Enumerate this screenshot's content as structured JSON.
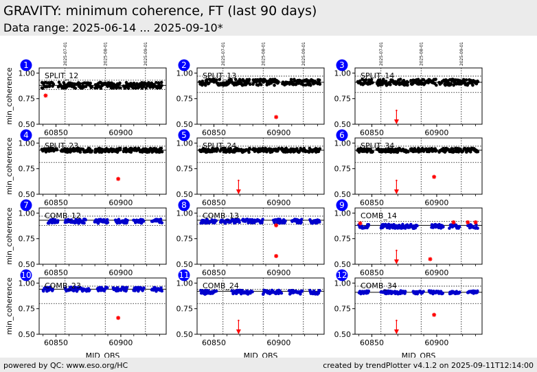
{
  "header": {
    "title": "GRAVITY: minimum coherence, FT (last 90 days)",
    "subtitle": "Data range: 2025-06-14 ... 2025-09-10*"
  },
  "footer": {
    "left": "powered by QC: www.eso.org/HC",
    "right": "created by trendPlotter v4.1.2 on 2025-09-11T12:14:00"
  },
  "colors": {
    "split": "#000000",
    "comb": "#0000cc",
    "outlier": "#ff0000",
    "badge": "#0000ff"
  },
  "chart_data": {
    "type": "scatter",
    "xlabel": "MJD_OBS",
    "ylabel": "min_coherence",
    "xlim": [
      60837,
      60935
    ],
    "ylim": [
      0.5,
      1.05
    ],
    "xticks": [
      60850,
      60900
    ],
    "yticks": [
      "0.50",
      "0.75",
      "1.00"
    ],
    "date_ticks": [
      {
        "mjd": 60857,
        "label": "2025-07-01"
      },
      {
        "mjd": 60888,
        "label": "2025-08-01"
      },
      {
        "mjd": 60919,
        "label": "2025-09-01"
      }
    ],
    "panels": [
      {
        "num": "1",
        "label": "SPLIT_12",
        "group": "split",
        "mean": 0.88,
        "lower": 0.84,
        "upper": 0.93,
        "segments": [
          [
            60839,
            60848
          ],
          [
            60852,
            60878
          ],
          [
            60880,
            60900
          ],
          [
            60902,
            60932
          ]
        ],
        "base": 0.88,
        "spread": 0.03,
        "outliers": [
          [
            60842,
            0.78
          ]
        ],
        "arrows": []
      },
      {
        "num": "2",
        "label": "SPLIT_13",
        "group": "split",
        "mean": 0.91,
        "lower": 0.81,
        "upper": 0.97,
        "segments": [
          [
            60839,
            60878
          ],
          [
            60880,
            60900
          ],
          [
            60903,
            60932
          ]
        ],
        "base": 0.91,
        "spread": 0.03,
        "outliers": [
          [
            60898,
            0.57
          ]
        ],
        "arrows": []
      },
      {
        "num": "3",
        "label": "SPLIT_14",
        "group": "split",
        "mean": 0.91,
        "lower": 0.81,
        "upper": 0.97,
        "segments": [
          [
            60839,
            60851
          ],
          [
            60854,
            60878
          ],
          [
            60880,
            60900
          ],
          [
            60902,
            60932
          ]
        ],
        "base": 0.91,
        "spread": 0.03,
        "outliers": [],
        "arrows": [
          60869
        ]
      },
      {
        "num": "4",
        "label": "SPLIT_23",
        "group": "split",
        "mean": 0.93,
        "lower": 0.81,
        "upper": 0.97,
        "segments": [
          [
            60839,
            60851
          ],
          [
            60854,
            60878
          ],
          [
            60880,
            60900
          ],
          [
            60902,
            60932
          ]
        ],
        "base": 0.93,
        "spread": 0.02,
        "outliers": [
          [
            60898,
            0.65
          ]
        ],
        "arrows": []
      },
      {
        "num": "5",
        "label": "SPLIT_24",
        "group": "split",
        "mean": 0.93,
        "lower": 0.81,
        "upper": 0.97,
        "segments": [
          [
            60839,
            60853
          ],
          [
            60855,
            60878
          ],
          [
            60880,
            60900
          ],
          [
            60902,
            60932
          ]
        ],
        "base": 0.93,
        "spread": 0.02,
        "outliers": [],
        "arrows": [
          60869
        ]
      },
      {
        "num": "6",
        "label": "SPLIT_34",
        "group": "split",
        "mean": 0.93,
        "lower": 0.81,
        "upper": 0.97,
        "segments": [
          [
            60839,
            60851
          ],
          [
            60854,
            60878
          ],
          [
            60880,
            60900
          ],
          [
            60902,
            60932
          ]
        ],
        "base": 0.93,
        "spread": 0.02,
        "outliers": [
          [
            60898,
            0.67
          ]
        ],
        "arrows": [
          60869
        ]
      },
      {
        "num": "7",
        "label": "COMB_12",
        "group": "comb",
        "mean": 0.93,
        "lower": 0.88,
        "upper": 0.97,
        "segments": [
          [
            60844,
            60852
          ],
          [
            60857,
            60873
          ],
          [
            60880,
            60890
          ],
          [
            60896,
            60905
          ],
          [
            60910,
            60918
          ],
          [
            60924,
            60932
          ]
        ],
        "base": 0.92,
        "spread": 0.02,
        "outliers": [],
        "arrows": []
      },
      {
        "num": "8",
        "label": "COMB_13",
        "group": "comb",
        "mean": 0.93,
        "lower": 0.89,
        "upper": 0.97,
        "segments": [
          [
            60840,
            60852
          ],
          [
            60855,
            60870
          ],
          [
            60872,
            60888
          ],
          [
            60896,
            60905
          ],
          [
            60910,
            60918
          ],
          [
            60924,
            60932
          ]
        ],
        "base": 0.92,
        "spread": 0.02,
        "outliers": [
          [
            60898,
            0.88
          ],
          [
            60898,
            0.58
          ]
        ],
        "arrows": []
      },
      {
        "num": "9",
        "label": "COMB_14",
        "group": "comb",
        "mean": 0.88,
        "lower": 0.8,
        "upper": 0.92,
        "segments": [
          [
            60840,
            60848
          ],
          [
            60857,
            60885
          ],
          [
            60896,
            60905
          ],
          [
            60910,
            60918
          ],
          [
            60924,
            60932
          ]
        ],
        "base": 0.87,
        "spread": 0.02,
        "outliers": [
          [
            60841,
            0.9
          ],
          [
            60895,
            0.55
          ],
          [
            60913,
            0.91
          ],
          [
            60924,
            0.91
          ],
          [
            60930,
            0.91
          ]
        ],
        "arrows": [
          60869
        ]
      },
      {
        "num": "10",
        "label": "COMB_23",
        "group": "comb",
        "mean": 0.94,
        "lower": 0.8,
        "upper": 0.97,
        "segments": [
          [
            60840,
            60848
          ],
          [
            60857,
            60876
          ],
          [
            60882,
            60890
          ],
          [
            60894,
            60905
          ],
          [
            60910,
            60918
          ],
          [
            60924,
            60932
          ]
        ],
        "base": 0.94,
        "spread": 0.02,
        "outliers": [
          [
            60898,
            0.66
          ]
        ],
        "arrows": []
      },
      {
        "num": "11",
        "label": "COMB_24",
        "group": "comb",
        "mean": 0.92,
        "lower": 0.8,
        "upper": 0.94,
        "segments": [
          [
            60840,
            60852
          ],
          [
            60864,
            60880
          ],
          [
            60888,
            60902
          ],
          [
            60908,
            60918
          ],
          [
            60924,
            60932
          ]
        ],
        "base": 0.91,
        "spread": 0.02,
        "outliers": [],
        "arrows": [
          60869
        ]
      },
      {
        "num": "12",
        "label": "COMB_34",
        "group": "comb",
        "mean": 0.91,
        "lower": 0.8,
        "upper": 0.97,
        "segments": [
          [
            60840,
            60848
          ],
          [
            60857,
            60876
          ],
          [
            60882,
            60890
          ],
          [
            60894,
            60905
          ],
          [
            60910,
            60918
          ],
          [
            60924,
            60932
          ]
        ],
        "base": 0.91,
        "spread": 0.015,
        "outliers": [
          [
            60898,
            0.69
          ]
        ],
        "arrows": [
          60869
        ]
      }
    ]
  }
}
